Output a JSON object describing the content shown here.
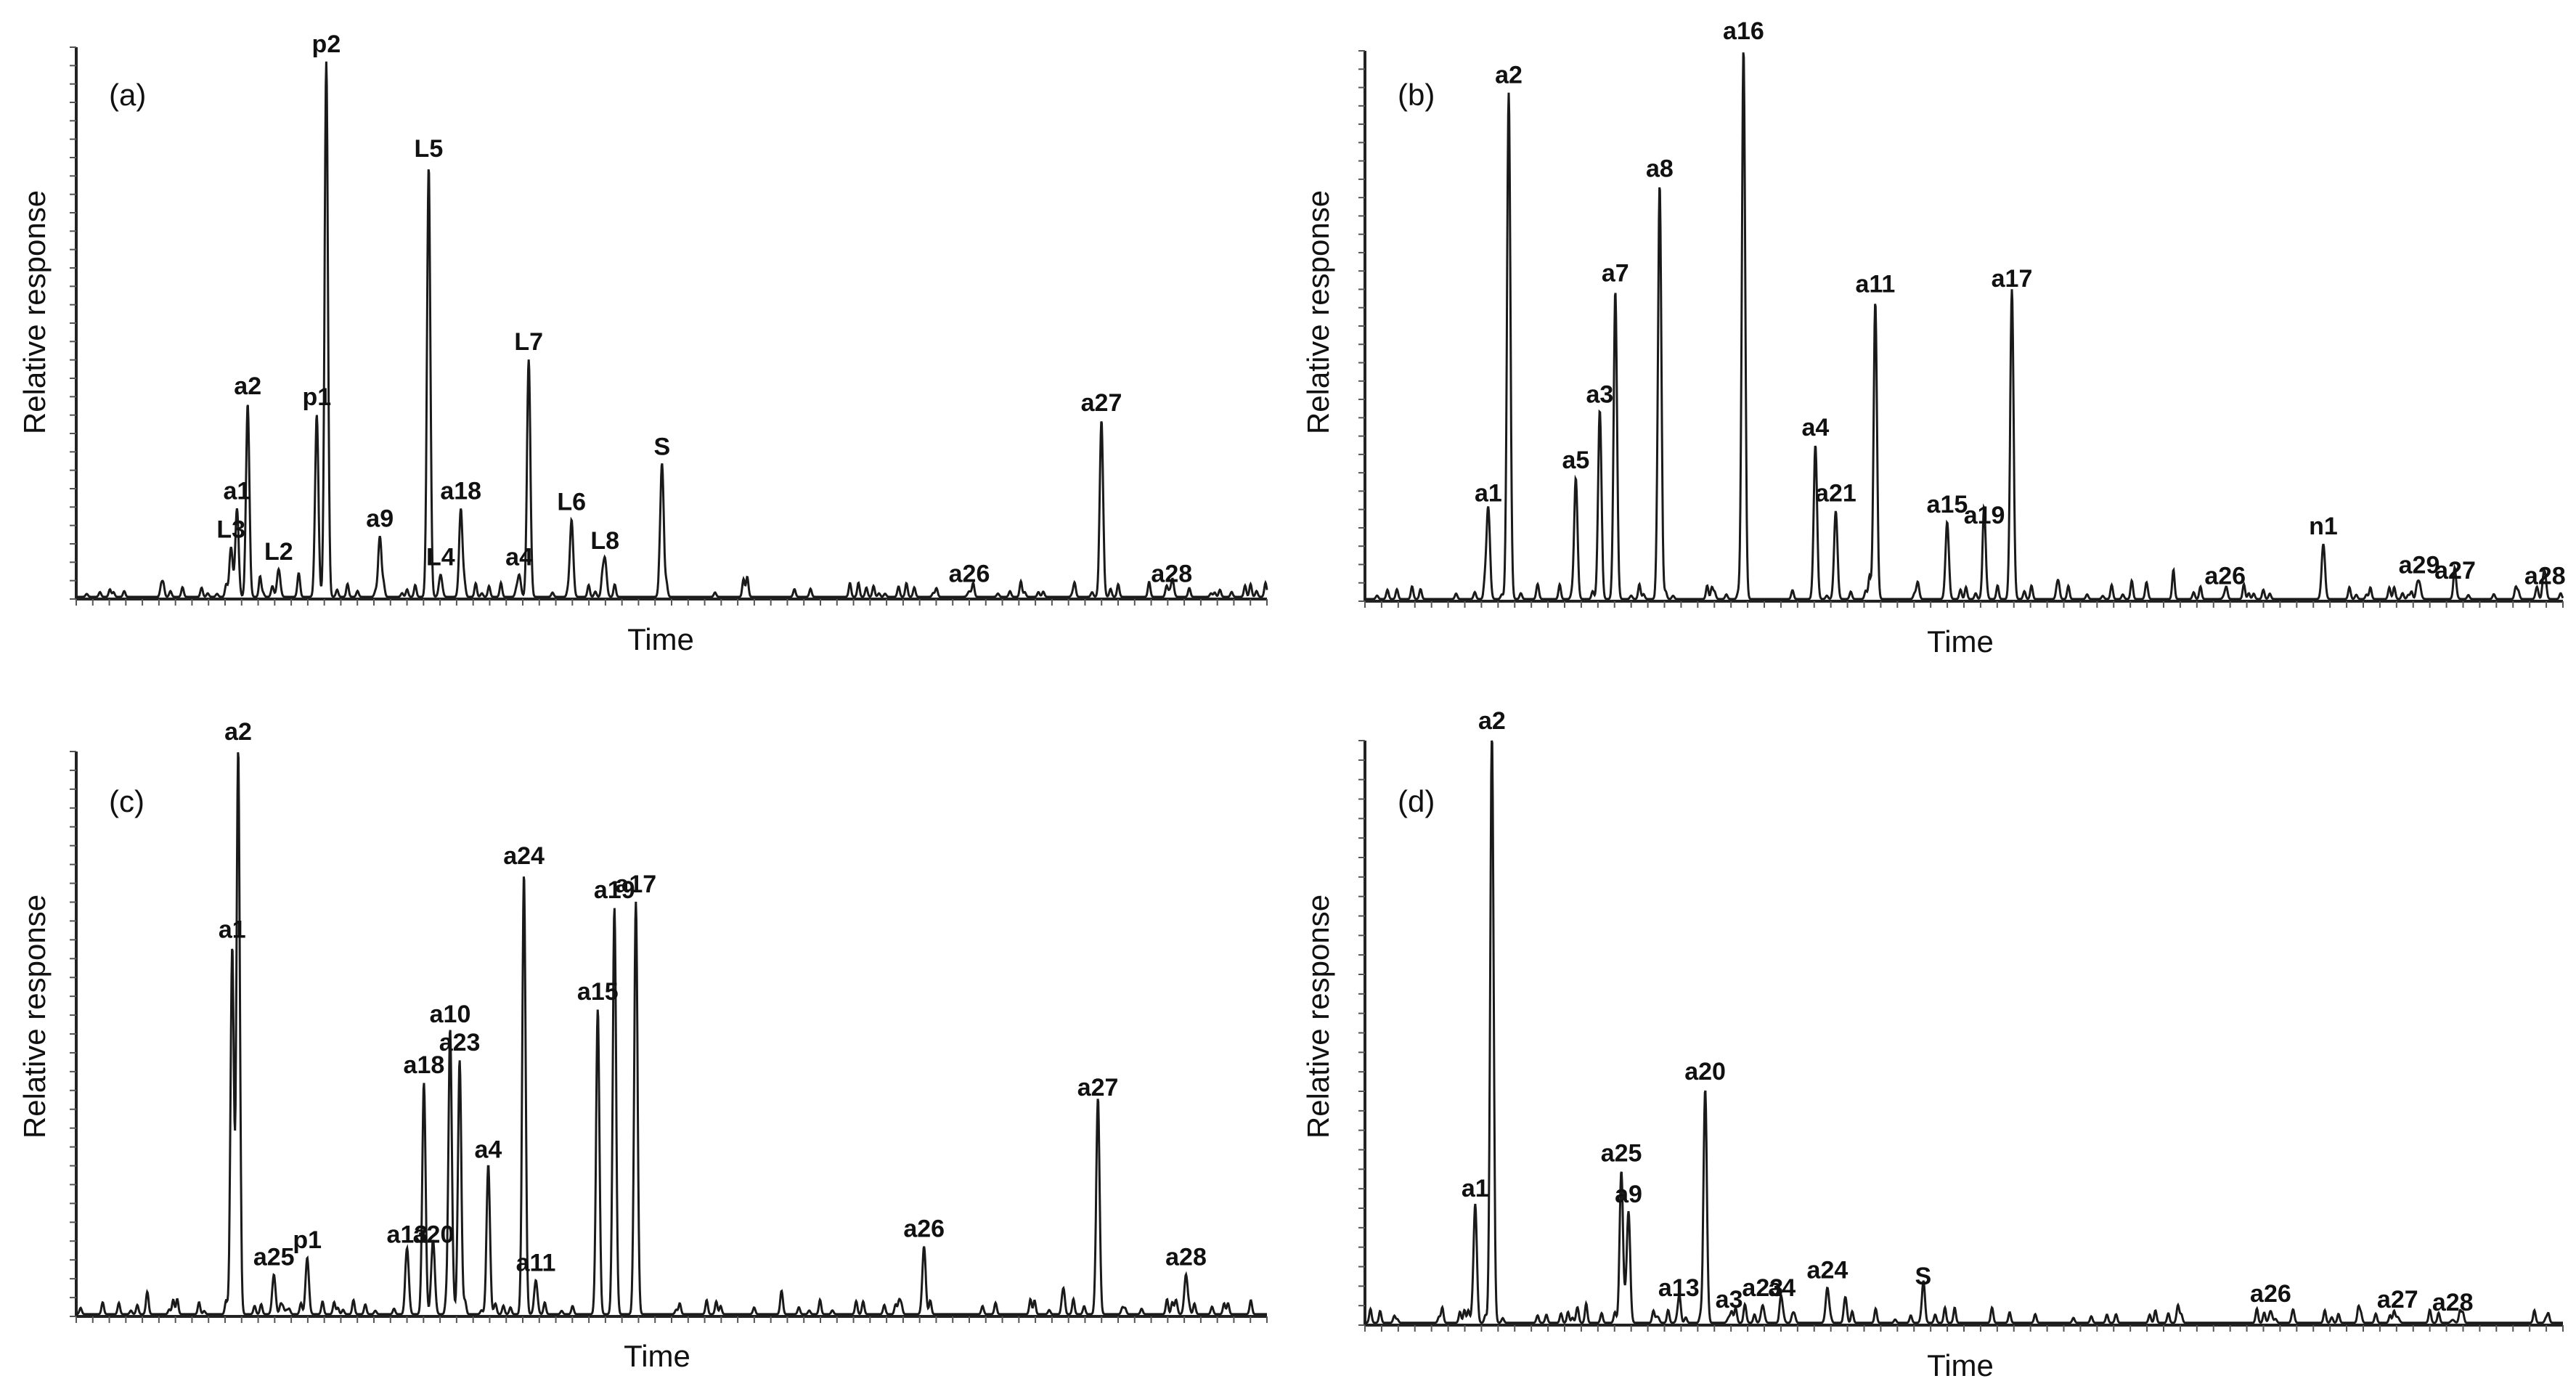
{
  "chart_data": [
    {
      "type": "line",
      "panel_label": "(a)",
      "xlabel": "Time",
      "ylabel": "Relative response",
      "x_range": [
        0,
        100
      ],
      "ylim": [
        0,
        100
      ],
      "peaks": [
        {
          "name": "L3",
          "x": 13.0,
          "y": 9
        },
        {
          "name": "a1",
          "x": 13.5,
          "y": 16
        },
        {
          "name": "a2",
          "x": 14.4,
          "y": 35
        },
        {
          "name": "L2",
          "x": 17.0,
          "y": 5
        },
        {
          "name": "p1",
          "x": 20.2,
          "y": 33
        },
        {
          "name": "p2",
          "x": 21.0,
          "y": 97
        },
        {
          "name": "a9",
          "x": 25.5,
          "y": 11
        },
        {
          "name": "L5",
          "x": 29.6,
          "y": 78
        },
        {
          "name": "L4",
          "x": 30.6,
          "y": 4
        },
        {
          "name": "a18",
          "x": 32.3,
          "y": 16
        },
        {
          "name": "a4",
          "x": 37.2,
          "y": 4
        },
        {
          "name": "L7",
          "x": 38.0,
          "y": 43
        },
        {
          "name": "L6",
          "x": 41.6,
          "y": 14
        },
        {
          "name": "L8",
          "x": 44.4,
          "y": 7
        },
        {
          "name": "S",
          "x": 49.2,
          "y": 24
        },
        {
          "name": "a26",
          "x": 75.0,
          "y": 1
        },
        {
          "name": "a27",
          "x": 86.1,
          "y": 32
        },
        {
          "name": "a28",
          "x": 92.0,
          "y": 1
        }
      ]
    },
    {
      "type": "line",
      "panel_label": "(b)",
      "xlabel": "Time",
      "ylabel": "Relative response",
      "x_range": [
        0,
        100
      ],
      "ylim": [
        0,
        100
      ],
      "peaks": [
        {
          "name": "a1",
          "x": 10.3,
          "y": 16
        },
        {
          "name": "a2",
          "x": 12.0,
          "y": 92
        },
        {
          "name": "a5",
          "x": 17.6,
          "y": 22
        },
        {
          "name": "a3",
          "x": 19.6,
          "y": 34
        },
        {
          "name": "a7",
          "x": 20.9,
          "y": 56
        },
        {
          "name": "a8",
          "x": 24.6,
          "y": 75
        },
        {
          "name": "a16",
          "x": 31.6,
          "y": 100
        },
        {
          "name": "a4",
          "x": 37.6,
          "y": 28
        },
        {
          "name": "a21",
          "x": 39.3,
          "y": 16
        },
        {
          "name": "a11",
          "x": 42.6,
          "y": 54
        },
        {
          "name": "a15",
          "x": 48.6,
          "y": 14
        },
        {
          "name": "a19",
          "x": 51.7,
          "y": 12
        },
        {
          "name": "a17",
          "x": 54.0,
          "y": 55
        },
        {
          "name": "a26",
          "x": 71.8,
          "y": 1
        },
        {
          "name": "n1",
          "x": 80.0,
          "y": 10
        },
        {
          "name": "a29",
          "x": 88.0,
          "y": 3
        },
        {
          "name": "a27",
          "x": 91.0,
          "y": 2
        },
        {
          "name": "a28",
          "x": 98.5,
          "y": 1
        }
      ]
    },
    {
      "type": "line",
      "panel_label": "(c)",
      "xlabel": "Time",
      "ylabel": "Relative response",
      "x_range": [
        0,
        100
      ],
      "ylim": [
        0,
        100
      ],
      "peaks": [
        {
          "name": "a1",
          "x": 13.1,
          "y": 65
        },
        {
          "name": "a2",
          "x": 13.6,
          "y": 100
        },
        {
          "name": "a25",
          "x": 16.6,
          "y": 7
        },
        {
          "name": "p1",
          "x": 19.4,
          "y": 10
        },
        {
          "name": "a13",
          "x": 27.8,
          "y": 11
        },
        {
          "name": "a20",
          "x": 30.0,
          "y": 11
        },
        {
          "name": "a18",
          "x": 29.2,
          "y": 41
        },
        {
          "name": "a10",
          "x": 31.4,
          "y": 50
        },
        {
          "name": "a23",
          "x": 32.2,
          "y": 45
        },
        {
          "name": "a4",
          "x": 34.6,
          "y": 26
        },
        {
          "name": "a24",
          "x": 37.6,
          "y": 78
        },
        {
          "name": "a11",
          "x": 38.6,
          "y": 6
        },
        {
          "name": "a15",
          "x": 43.8,
          "y": 54
        },
        {
          "name": "a19",
          "x": 45.2,
          "y": 72
        },
        {
          "name": "a17",
          "x": 47.0,
          "y": 73
        },
        {
          "name": "a26",
          "x": 71.2,
          "y": 12
        },
        {
          "name": "a27",
          "x": 85.8,
          "y": 37
        },
        {
          "name": "a28",
          "x": 93.2,
          "y": 7
        }
      ]
    },
    {
      "type": "line",
      "panel_label": "(d)",
      "xlabel": "Time",
      "ylabel": "Relative response",
      "x_range": [
        0,
        100
      ],
      "ylim": [
        0,
        100
      ],
      "peaks": [
        {
          "name": "a1",
          "x": 9.2,
          "y": 20
        },
        {
          "name": "a2",
          "x": 10.6,
          "y": 100
        },
        {
          "name": "a25",
          "x": 21.4,
          "y": 26
        },
        {
          "name": "a9",
          "x": 22.0,
          "y": 19
        },
        {
          "name": "a13",
          "x": 26.2,
          "y": 3
        },
        {
          "name": "a20",
          "x": 28.4,
          "y": 40
        },
        {
          "name": "a3",
          "x": 30.4,
          "y": 1
        },
        {
          "name": "a23",
          "x": 33.2,
          "y": 3
        },
        {
          "name": "a4",
          "x": 34.8,
          "y": 3
        },
        {
          "name": "a24",
          "x": 38.6,
          "y": 6
        },
        {
          "name": "S",
          "x": 46.6,
          "y": 5
        },
        {
          "name": "a26",
          "x": 75.6,
          "y": 2
        },
        {
          "name": "a27",
          "x": 86.2,
          "y": 1
        },
        {
          "name": "a28",
          "x": 90.8,
          "y": 0.5
        }
      ]
    }
  ]
}
